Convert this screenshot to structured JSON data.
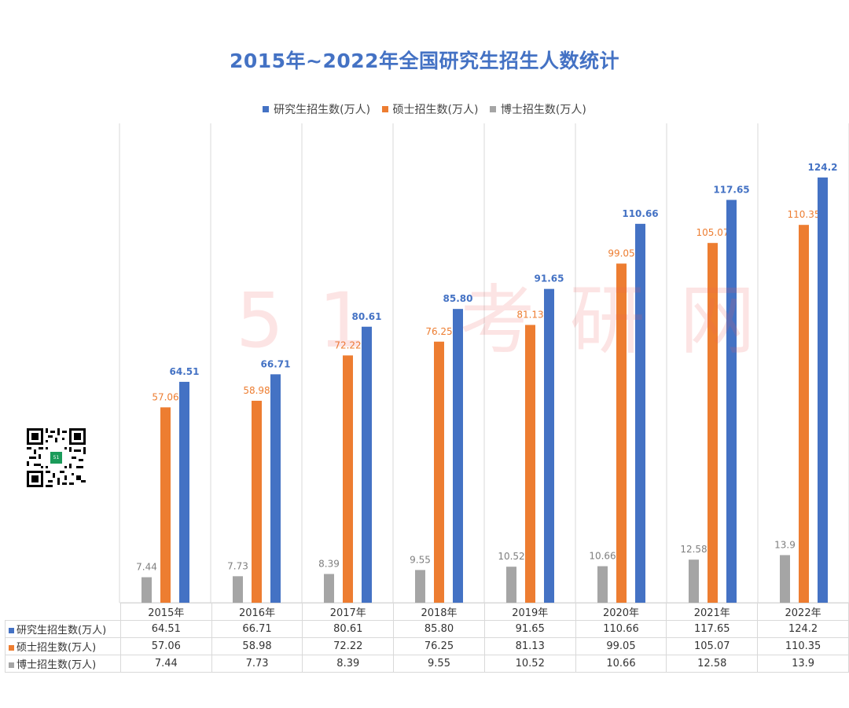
{
  "chart_data": {
    "type": "bar",
    "title": "2015年~2022年全国研究生招生人数统计",
    "categories": [
      "2015年",
      "2016年",
      "2017年",
      "2018年",
      "2019年",
      "2020年",
      "2021年",
      "2022年"
    ],
    "ylim": [
      0,
      140
    ],
    "grid": "vertical category separators",
    "legend_position": "top",
    "series": [
      {
        "name": "研究生招生数(万人)",
        "color": "#4472c4",
        "values": [
          64.51,
          66.71,
          80.61,
          85.8,
          91.65,
          110.66,
          117.65,
          124.2
        ],
        "labels": [
          "64.51",
          "66.71",
          "80.61",
          "85.80",
          "91.65",
          "110.66",
          "117.65",
          "124.2"
        ]
      },
      {
        "name": "硕士招生数(万人)",
        "color": "#ed7d31",
        "values": [
          57.06,
          58.98,
          72.22,
          76.25,
          81.13,
          99.05,
          105.07,
          110.35
        ],
        "labels": [
          "57.06",
          "58.98",
          "72.22",
          "76.25",
          "81.13",
          "99.05",
          "105.07",
          "110.35"
        ]
      },
      {
        "name": "博士招生数(万人)",
        "color": "#a5a5a5",
        "values": [
          7.44,
          7.73,
          8.39,
          9.55,
          10.52,
          10.66,
          12.58,
          13.9
        ],
        "labels": [
          "7.44",
          "7.73",
          "8.39",
          "9.55",
          "10.52",
          "10.66",
          "12.58",
          "13.9"
        ]
      }
    ]
  },
  "watermark": "51 考研网",
  "qr_badge": "51"
}
